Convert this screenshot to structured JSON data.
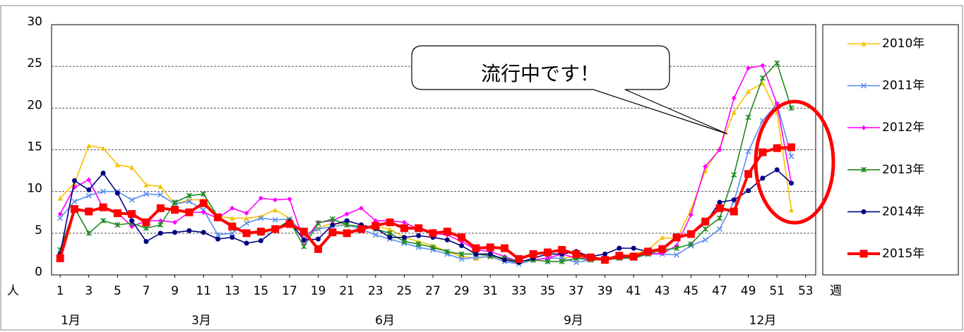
{
  "chart_data": {
    "type": "line",
    "x_label": "週",
    "y_label": "人",
    "annotation": "流行中です！",
    "month_labels": [
      "1月",
      "3月",
      "6月",
      "9月",
      "12月"
    ],
    "x": [
      1,
      2,
      3,
      4,
      5,
      6,
      7,
      8,
      9,
      10,
      11,
      12,
      13,
      14,
      15,
      16,
      17,
      18,
      19,
      20,
      21,
      22,
      23,
      24,
      25,
      26,
      27,
      28,
      29,
      30,
      31,
      32,
      33,
      34,
      35,
      36,
      37,
      38,
      39,
      40,
      41,
      42,
      43,
      44,
      45,
      46,
      47,
      48,
      49,
      50,
      51,
      52
    ],
    "xlim": [
      0.4,
      53.7
    ],
    "xticks": [
      1,
      3,
      5,
      7,
      9,
      11,
      13,
      15,
      17,
      19,
      21,
      23,
      25,
      27,
      29,
      31,
      33,
      35,
      37,
      39,
      41,
      43,
      45,
      47,
      49,
      51,
      53
    ],
    "ylim": [
      0,
      30
    ],
    "yticks": [
      0,
      5,
      10,
      15,
      20,
      25,
      30
    ],
    "grid": true,
    "legend": "right",
    "series": [
      {
        "name": "2010年",
        "color": "#f5c200",
        "marker": "triangle",
        "values": [
          9.2,
          11.0,
          15.5,
          15.2,
          13.2,
          12.9,
          10.8,
          10.6,
          8.5,
          9.0,
          9.0,
          7.0,
          6.8,
          6.8,
          7.0,
          7.8,
          6.8,
          4.8,
          5.6,
          6.2,
          6.0,
          5.8,
          5.8,
          5.5,
          4.5,
          4.0,
          3.5,
          2.8,
          2.2,
          2.0,
          2.2,
          1.8,
          1.6,
          1.8,
          2.0,
          2.0,
          2.2,
          2.0,
          2.0,
          2.2,
          2.5,
          3.0,
          4.5,
          4.3,
          7.8,
          12.5,
          15.2,
          19.5,
          22.0,
          23.0,
          19.5,
          7.8
        ]
      },
      {
        "name": "2011年",
        "color": "#5b8ef0",
        "marker": "x",
        "values": [
          6.8,
          8.8,
          9.5,
          10.0,
          10.0,
          9.0,
          9.7,
          9.6,
          8.5,
          8.8,
          7.8,
          4.8,
          5.0,
          6.2,
          6.8,
          6.6,
          6.7,
          4.8,
          5.5,
          5.8,
          6.0,
          5.5,
          4.8,
          4.3,
          3.8,
          3.3,
          3.0,
          2.5,
          1.9,
          2.1,
          2.2,
          1.6,
          1.3,
          1.8,
          2.0,
          2.0,
          1.5,
          1.8,
          1.8,
          2.0,
          2.0,
          2.5,
          2.5,
          2.4,
          3.5,
          4.2,
          5.5,
          8.8,
          14.8,
          18.5,
          20.5,
          14.2
        ]
      },
      {
        "name": "2012年",
        "color": "#ff00ff",
        "marker": "diamond",
        "values": [
          7.3,
          10.5,
          11.4,
          8.0,
          7.5,
          5.8,
          6.5,
          6.5,
          6.3,
          7.5,
          7.5,
          6.8,
          8.0,
          7.4,
          9.2,
          9.0,
          9.1,
          4.0,
          6.3,
          6.5,
          7.3,
          8.0,
          6.5,
          6.5,
          6.3,
          5.5,
          5.0,
          4.8,
          4.0,
          3.0,
          2.8,
          2.2,
          1.6,
          1.8,
          2.0,
          2.5,
          2.0,
          2.0,
          2.0,
          2.2,
          2.0,
          2.5,
          2.6,
          3.5,
          7.2,
          13.0,
          15.0,
          21.2,
          24.8,
          25.1,
          20.5,
          11.0
        ]
      },
      {
        "name": "2013年",
        "color": "#1f8a1f",
        "marker": "asterisk",
        "values": [
          3.0,
          8.0,
          5.0,
          6.5,
          6.0,
          6.2,
          5.6,
          6.0,
          8.7,
          9.5,
          9.7,
          7.0,
          6.0,
          5.0,
          5.0,
          5.5,
          6.5,
          3.4,
          6.2,
          6.7,
          6.0,
          5.8,
          5.5,
          5.0,
          4.0,
          3.7,
          3.3,
          2.8,
          2.5,
          2.5,
          2.3,
          2.0,
          1.6,
          1.8,
          1.6,
          1.6,
          2.0,
          1.8,
          1.8,
          2.0,
          2.0,
          2.5,
          3.0,
          3.2,
          3.7,
          5.5,
          6.8,
          12.0,
          18.9,
          23.6,
          25.4,
          20.0
        ]
      },
      {
        "name": "2014年",
        "color": "#000080",
        "marker": "circle",
        "values": [
          2.5,
          11.3,
          10.2,
          12.2,
          9.8,
          6.5,
          4.0,
          5.0,
          5.1,
          5.3,
          5.1,
          4.3,
          4.5,
          3.8,
          4.1,
          5.4,
          6.4,
          4.2,
          4.3,
          6.0,
          6.5,
          6.0,
          5.6,
          4.5,
          4.5,
          4.7,
          4.5,
          4.2,
          3.5,
          2.5,
          2.5,
          1.8,
          1.5,
          2.0,
          2.5,
          2.5,
          2.8,
          2.2,
          2.5,
          3.2,
          3.2,
          2.8,
          3.0,
          4.5,
          4.8,
          6.2,
          8.7,
          9.0,
          10.1,
          11.6,
          12.6,
          11.0
        ]
      },
      {
        "name": "2015年",
        "color": "#ff0000",
        "marker": "square",
        "values": [
          2.0,
          7.9,
          7.6,
          8.1,
          7.4,
          7.3,
          6.3,
          8.0,
          7.8,
          7.5,
          8.6,
          6.9,
          5.8,
          5.0,
          5.2,
          5.5,
          6.1,
          5.2,
          3.1,
          5.1,
          5.0,
          5.5,
          5.9,
          6.3,
          5.6,
          5.6,
          5.0,
          5.2,
          4.5,
          3.2,
          3.3,
          3.2,
          1.9,
          2.5,
          2.7,
          3.0,
          2.5,
          2.1,
          1.8,
          2.3,
          2.2,
          2.8,
          3.1,
          4.5,
          4.9,
          6.4,
          8.0,
          7.6,
          12.1,
          14.7,
          15.2,
          15.3
        ]
      }
    ]
  }
}
